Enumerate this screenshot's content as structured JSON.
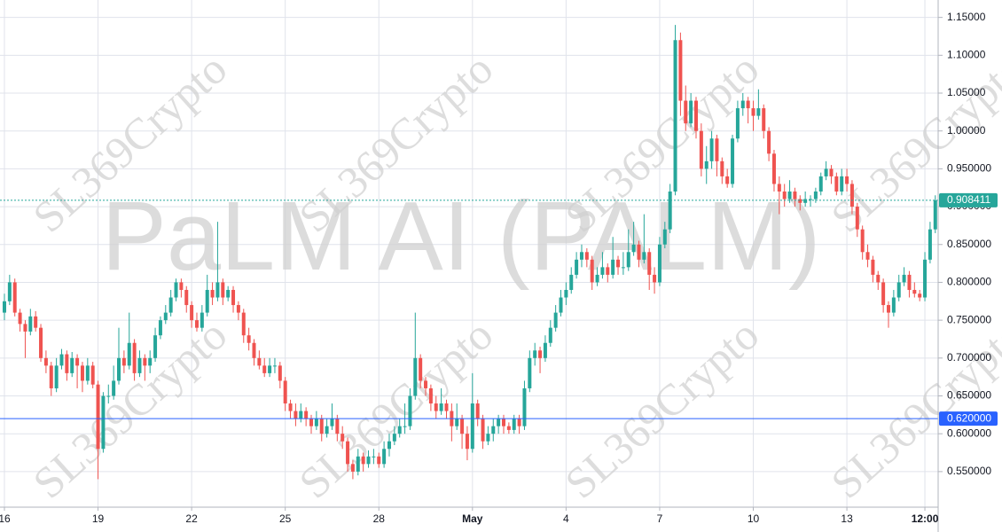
{
  "chart_data": {
    "type": "candlestick",
    "watermark": "PaLM AI (PALM)",
    "brand_watermark": "SL369Crypto",
    "up_color": "#26a69a",
    "down_color": "#ef5350",
    "grid": true,
    "ylim": [
      0.503,
      1.173
    ],
    "yticks": [
      {
        "value": 0.55,
        "label": "0.550000"
      },
      {
        "value": 0.6,
        "label": "0.600000"
      },
      {
        "value": 0.65,
        "label": "0.650000"
      },
      {
        "value": 0.7,
        "label": "0.700000"
      },
      {
        "value": 0.75,
        "label": "0.750000"
      },
      {
        "value": 0.8,
        "label": "0.800000"
      },
      {
        "value": 0.85,
        "label": "0.850000"
      },
      {
        "value": 0.9,
        "label": "0.900000"
      },
      {
        "value": 0.95,
        "label": "0.950000"
      },
      {
        "value": 1.0,
        "label": "1.00000"
      },
      {
        "value": 1.05,
        "label": "1.05000"
      },
      {
        "value": 1.1,
        "label": "1.10000"
      },
      {
        "value": 1.15,
        "label": "1.15000"
      }
    ],
    "xlim": [
      -0.85,
      179.55
    ],
    "xticks": [
      {
        "value": 0,
        "label": "16"
      },
      {
        "value": 18,
        "label": "19"
      },
      {
        "value": 36,
        "label": "22"
      },
      {
        "value": 54,
        "label": "25"
      },
      {
        "value": 72,
        "label": "28"
      },
      {
        "value": 90,
        "label": "May"
      },
      {
        "value": 108,
        "label": "4"
      },
      {
        "value": 126,
        "label": "7"
      },
      {
        "value": 144,
        "label": "10"
      },
      {
        "value": 162,
        "label": "13"
      },
      {
        "value": 177,
        "label": "12:00"
      }
    ],
    "price_lines": [
      {
        "value": 0.62,
        "label": "0.620000",
        "color": "#2962ff",
        "dashed": false
      },
      {
        "value": 0.908411,
        "label": "0.908411",
        "color": "#26a69a",
        "dashed": true
      }
    ],
    "candles": [
      [
        0.76,
        0.785,
        0.75,
        0.775
      ],
      [
        0.775,
        0.81,
        0.77,
        0.8
      ],
      [
        0.8,
        0.805,
        0.755,
        0.76
      ],
      [
        0.76,
        0.765,
        0.735,
        0.745
      ],
      [
        0.745,
        0.75,
        0.7,
        0.735
      ],
      [
        0.735,
        0.765,
        0.73,
        0.755
      ],
      [
        0.755,
        0.762,
        0.735,
        0.74
      ],
      [
        0.74,
        0.745,
        0.695,
        0.7
      ],
      [
        0.7,
        0.71,
        0.68,
        0.69
      ],
      [
        0.69,
        0.695,
        0.65,
        0.66
      ],
      [
        0.66,
        0.7,
        0.655,
        0.69
      ],
      [
        0.69,
        0.712,
        0.685,
        0.705
      ],
      [
        0.705,
        0.71,
        0.67,
        0.68
      ],
      [
        0.68,
        0.708,
        0.675,
        0.7
      ],
      [
        0.7,
        0.705,
        0.66,
        0.69
      ],
      [
        0.69,
        0.695,
        0.655,
        0.67
      ],
      [
        0.67,
        0.7,
        0.665,
        0.69
      ],
      [
        0.69,
        0.695,
        0.66,
        0.665
      ],
      [
        0.665,
        0.67,
        0.54,
        0.58
      ],
      [
        0.58,
        0.655,
        0.575,
        0.65
      ],
      [
        0.65,
        0.665,
        0.64,
        0.65
      ],
      [
        0.65,
        0.69,
        0.645,
        0.67
      ],
      [
        0.67,
        0.74,
        0.665,
        0.7
      ],
      [
        0.7,
        0.71,
        0.68,
        0.69
      ],
      [
        0.69,
        0.76,
        0.685,
        0.72
      ],
      [
        0.72,
        0.725,
        0.67,
        0.68
      ],
      [
        0.68,
        0.71,
        0.675,
        0.7
      ],
      [
        0.7,
        0.705,
        0.67,
        0.69
      ],
      [
        0.69,
        0.71,
        0.68,
        0.7
      ],
      [
        0.7,
        0.74,
        0.695,
        0.73
      ],
      [
        0.73,
        0.755,
        0.725,
        0.75
      ],
      [
        0.75,
        0.77,
        0.745,
        0.76
      ],
      [
        0.76,
        0.79,
        0.755,
        0.78
      ],
      [
        0.78,
        0.805,
        0.775,
        0.8
      ],
      [
        0.8,
        0.805,
        0.78,
        0.79
      ],
      [
        0.79,
        0.795,
        0.76,
        0.77
      ],
      [
        0.77,
        0.775,
        0.74,
        0.75
      ],
      [
        0.75,
        0.76,
        0.735,
        0.74
      ],
      [
        0.74,
        0.77,
        0.735,
        0.76
      ],
      [
        0.76,
        0.81,
        0.755,
        0.79
      ],
      [
        0.79,
        0.8,
        0.77,
        0.78
      ],
      [
        0.78,
        0.88,
        0.775,
        0.8
      ],
      [
        0.8,
        0.805,
        0.77,
        0.78
      ],
      [
        0.78,
        0.795,
        0.775,
        0.79
      ],
      [
        0.79,
        0.795,
        0.76,
        0.77
      ],
      [
        0.77,
        0.775,
        0.75,
        0.76
      ],
      [
        0.76,
        0.765,
        0.72,
        0.73
      ],
      [
        0.73,
        0.74,
        0.71,
        0.72
      ],
      [
        0.72,
        0.725,
        0.69,
        0.7
      ],
      [
        0.7,
        0.71,
        0.685,
        0.69
      ],
      [
        0.69,
        0.7,
        0.675,
        0.68
      ],
      [
        0.68,
        0.7,
        0.675,
        0.69
      ],
      [
        0.69,
        0.7,
        0.68,
        0.69
      ],
      [
        0.69,
        0.695,
        0.66,
        0.67
      ],
      [
        0.67,
        0.675,
        0.63,
        0.64
      ],
      [
        0.64,
        0.645,
        0.62,
        0.63
      ],
      [
        0.63,
        0.64,
        0.61,
        0.62
      ],
      [
        0.62,
        0.64,
        0.615,
        0.63
      ],
      [
        0.63,
        0.635,
        0.61,
        0.62
      ],
      [
        0.62,
        0.625,
        0.6,
        0.61
      ],
      [
        0.61,
        0.63,
        0.605,
        0.62
      ],
      [
        0.62,
        0.625,
        0.59,
        0.6
      ],
      [
        0.6,
        0.62,
        0.595,
        0.61
      ],
      [
        0.61,
        0.64,
        0.605,
        0.62
      ],
      [
        0.62,
        0.625,
        0.59,
        0.6
      ],
      [
        0.6,
        0.61,
        0.58,
        0.59
      ],
      [
        0.59,
        0.595,
        0.55,
        0.56
      ],
      [
        0.56,
        0.565,
        0.54,
        0.55
      ],
      [
        0.55,
        0.58,
        0.545,
        0.57
      ],
      [
        0.57,
        0.575,
        0.55,
        0.56
      ],
      [
        0.56,
        0.578,
        0.555,
        0.57
      ],
      [
        0.57,
        0.58,
        0.56,
        0.57
      ],
      [
        0.57,
        0.575,
        0.555,
        0.56
      ],
      [
        0.56,
        0.59,
        0.555,
        0.58
      ],
      [
        0.58,
        0.6,
        0.57,
        0.59
      ],
      [
        0.59,
        0.61,
        0.585,
        0.6
      ],
      [
        0.6,
        0.62,
        0.595,
        0.61
      ],
      [
        0.61,
        0.64,
        0.6,
        0.61
      ],
      [
        0.61,
        0.66,
        0.605,
        0.65
      ],
      [
        0.65,
        0.76,
        0.645,
        0.7
      ],
      [
        0.7,
        0.705,
        0.66,
        0.67
      ],
      [
        0.67,
        0.675,
        0.65,
        0.66
      ],
      [
        0.66,
        0.665,
        0.63,
        0.64
      ],
      [
        0.64,
        0.65,
        0.62,
        0.63
      ],
      [
        0.63,
        0.66,
        0.625,
        0.64
      ],
      [
        0.64,
        0.645,
        0.62,
        0.63
      ],
      [
        0.63,
        0.64,
        0.59,
        0.61
      ],
      [
        0.61,
        0.64,
        0.605,
        0.62
      ],
      [
        0.62,
        0.625,
        0.58,
        0.6
      ],
      [
        0.6,
        0.61,
        0.565,
        0.58
      ],
      [
        0.58,
        0.68,
        0.575,
        0.64
      ],
      [
        0.64,
        0.645,
        0.61,
        0.62
      ],
      [
        0.62,
        0.625,
        0.58,
        0.59
      ],
      [
        0.59,
        0.61,
        0.585,
        0.6
      ],
      [
        0.6,
        0.62,
        0.59,
        0.61
      ],
      [
        0.61,
        0.625,
        0.6,
        0.62
      ],
      [
        0.62,
        0.625,
        0.6,
        0.61
      ],
      [
        0.61,
        0.615,
        0.6,
        0.605
      ],
      [
        0.605,
        0.625,
        0.6,
        0.62
      ],
      [
        0.62,
        0.625,
        0.6,
        0.61
      ],
      [
        0.61,
        0.67,
        0.605,
        0.66
      ],
      [
        0.66,
        0.71,
        0.655,
        0.7
      ],
      [
        0.7,
        0.72,
        0.69,
        0.71
      ],
      [
        0.71,
        0.715,
        0.68,
        0.7
      ],
      [
        0.7,
        0.73,
        0.695,
        0.72
      ],
      [
        0.72,
        0.75,
        0.715,
        0.74
      ],
      [
        0.74,
        0.77,
        0.735,
        0.76
      ],
      [
        0.76,
        0.79,
        0.755,
        0.78
      ],
      [
        0.78,
        0.8,
        0.77,
        0.79
      ],
      [
        0.79,
        0.82,
        0.785,
        0.81
      ],
      [
        0.81,
        0.84,
        0.805,
        0.83
      ],
      [
        0.83,
        0.85,
        0.82,
        0.84
      ],
      [
        0.84,
        0.845,
        0.82,
        0.83
      ],
      [
        0.83,
        0.835,
        0.79,
        0.8
      ],
      [
        0.8,
        0.82,
        0.795,
        0.81
      ],
      [
        0.81,
        0.84,
        0.805,
        0.82
      ],
      [
        0.82,
        0.825,
        0.8,
        0.81
      ],
      [
        0.81,
        0.86,
        0.805,
        0.83
      ],
      [
        0.83,
        0.835,
        0.81,
        0.82
      ],
      [
        0.82,
        0.84,
        0.81,
        0.82
      ],
      [
        0.82,
        0.87,
        0.815,
        0.84
      ],
      [
        0.84,
        0.88,
        0.835,
        0.85
      ],
      [
        0.85,
        0.855,
        0.82,
        0.83
      ],
      [
        0.83,
        0.89,
        0.825,
        0.84
      ],
      [
        0.84,
        0.845,
        0.79,
        0.81
      ],
      [
        0.81,
        0.82,
        0.785,
        0.8
      ],
      [
        0.8,
        0.86,
        0.795,
        0.85
      ],
      [
        0.85,
        0.88,
        0.845,
        0.87
      ],
      [
        0.87,
        0.93,
        0.865,
        0.92
      ],
      [
        0.92,
        1.14,
        0.915,
        1.12
      ],
      [
        1.12,
        1.13,
        1.02,
        1.04
      ],
      [
        1.04,
        1.06,
        1.0,
        1.01
      ],
      [
        1.01,
        1.05,
        1.005,
        1.04
      ],
      [
        1.04,
        1.045,
        0.99,
        1.0
      ],
      [
        1.0,
        1.01,
        0.94,
        0.95
      ],
      [
        0.95,
        0.98,
        0.93,
        0.96
      ],
      [
        0.96,
        1.0,
        0.95,
        0.99
      ],
      [
        0.99,
        0.995,
        0.94,
        0.96
      ],
      [
        0.96,
        0.965,
        0.93,
        0.94
      ],
      [
        0.94,
        0.95,
        0.925,
        0.93
      ],
      [
        0.93,
        0.995,
        0.925,
        0.99
      ],
      [
        0.99,
        1.04,
        0.985,
        1.03
      ],
      [
        1.03,
        1.05,
        1.02,
        1.04
      ],
      [
        1.04,
        1.045,
        1.01,
        1.03
      ],
      [
        1.03,
        1.04,
        1.0,
        1.02
      ],
      [
        1.02,
        1.055,
        1.015,
        1.03
      ],
      [
        1.03,
        1.035,
        0.99,
        1.0
      ],
      [
        1.0,
        1.005,
        0.96,
        0.97
      ],
      [
        0.97,
        0.975,
        0.92,
        0.93
      ],
      [
        0.93,
        0.94,
        0.89,
        0.92
      ],
      [
        0.92,
        0.93,
        0.9,
        0.91
      ],
      [
        0.91,
        0.935,
        0.905,
        0.92
      ],
      [
        0.92,
        0.925,
        0.9,
        0.91
      ],
      [
        0.91,
        0.915,
        0.895,
        0.905
      ],
      [
        0.905,
        0.92,
        0.9,
        0.91
      ],
      [
        0.91,
        0.915,
        0.9,
        0.91
      ],
      [
        0.91,
        0.925,
        0.905,
        0.92
      ],
      [
        0.92,
        0.945,
        0.915,
        0.94
      ],
      [
        0.94,
        0.96,
        0.935,
        0.95
      ],
      [
        0.95,
        0.955,
        0.93,
        0.94
      ],
      [
        0.94,
        0.945,
        0.915,
        0.92
      ],
      [
        0.92,
        0.95,
        0.915,
        0.94
      ],
      [
        0.94,
        0.95,
        0.92,
        0.93
      ],
      [
        0.93,
        0.935,
        0.89,
        0.9
      ],
      [
        0.9,
        0.905,
        0.86,
        0.87
      ],
      [
        0.87,
        0.875,
        0.83,
        0.84
      ],
      [
        0.84,
        0.85,
        0.82,
        0.83
      ],
      [
        0.83,
        0.835,
        0.8,
        0.81
      ],
      [
        0.81,
        0.815,
        0.79,
        0.8
      ],
      [
        0.8,
        0.805,
        0.76,
        0.77
      ],
      [
        0.77,
        0.775,
        0.74,
        0.76
      ],
      [
        0.76,
        0.79,
        0.755,
        0.78
      ],
      [
        0.78,
        0.81,
        0.775,
        0.8
      ],
      [
        0.8,
        0.82,
        0.795,
        0.81
      ],
      [
        0.81,
        0.815,
        0.78,
        0.79
      ],
      [
        0.79,
        0.8,
        0.78,
        0.785
      ],
      [
        0.785,
        0.79,
        0.775,
        0.78
      ],
      [
        0.78,
        0.84,
        0.775,
        0.83
      ],
      [
        0.83,
        0.88,
        0.825,
        0.87
      ],
      [
        0.87,
        0.915,
        0.865,
        0.908411
      ]
    ]
  }
}
